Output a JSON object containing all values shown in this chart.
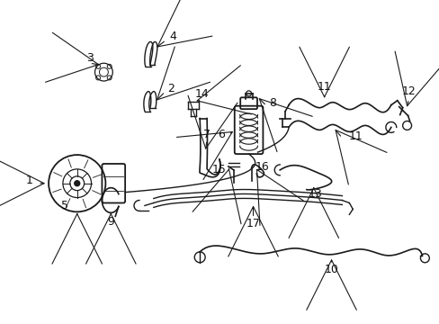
{
  "background_color": "#ffffff",
  "line_color": "#1a1a1a",
  "label_color": "#111111",
  "figsize": [
    4.89,
    3.6
  ],
  "dpi": 100
}
